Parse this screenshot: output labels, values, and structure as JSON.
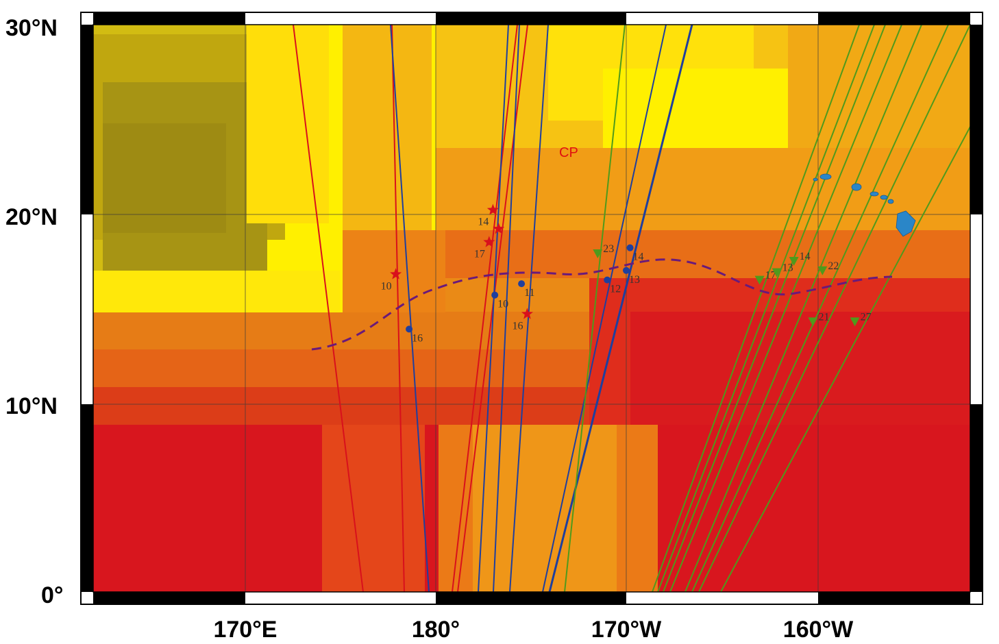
{
  "map": {
    "region_label": "CP",
    "lat_labels": [
      "30°N",
      "20°N",
      "10°N",
      "0°"
    ],
    "lon_labels": [
      "170°E",
      "180°",
      "170°W",
      "160°W"
    ],
    "colors": {
      "deep_red": "#d8141c",
      "orange": "#ee8a14",
      "yellow": "#fff200",
      "olive": "#b8a420",
      "red_track": "#d8101c",
      "blue_track": "#1f3f9e",
      "green_track": "#4f9a1c",
      "dashed_boundary": "#6a1a7a",
      "island": "#2a86c8"
    },
    "red_stars": [
      {
        "label": "16",
        "lon": 184.8,
        "lat": 14.7
      },
      {
        "label": "10",
        "lon": 177.9,
        "lat": 16.8
      },
      {
        "label": "14",
        "lon": 183.0,
        "lat": 20.2
      },
      {
        "label": "",
        "lon": 183.3,
        "lat": 19.2
      },
      {
        "label": "17",
        "lon": 182.8,
        "lat": 18.5
      }
    ],
    "blue_points": [
      {
        "label": "16",
        "lon": 178.6,
        "lat": 13.9
      },
      {
        "label": "10",
        "lon": 183.1,
        "lat": 15.7
      },
      {
        "label": "11",
        "lon": 184.5,
        "lat": 16.3
      },
      {
        "label": "12",
        "lon": 189.0,
        "lat": 16.5
      },
      {
        "label": "13",
        "lon": 190.0,
        "lat": 17.0
      },
      {
        "label": "14",
        "lon": 190.2,
        "lat": 18.2
      }
    ],
    "green_triangles": [
      {
        "label": "23",
        "lon": 188.5,
        "lat": 17.9
      },
      {
        "label": "17",
        "lon": 197.0,
        "lat": 16.5
      },
      {
        "label": "13",
        "lon": 197.9,
        "lat": 16.9
      },
      {
        "label": "14",
        "lon": 198.8,
        "lat": 17.5
      },
      {
        "label": "22",
        "lon": 200.3,
        "lat": 17.0
      },
      {
        "label": "21",
        "lon": 199.8,
        "lat": 14.3
      },
      {
        "label": "27",
        "lon": 202.0,
        "lat": 14.3
      }
    ]
  }
}
